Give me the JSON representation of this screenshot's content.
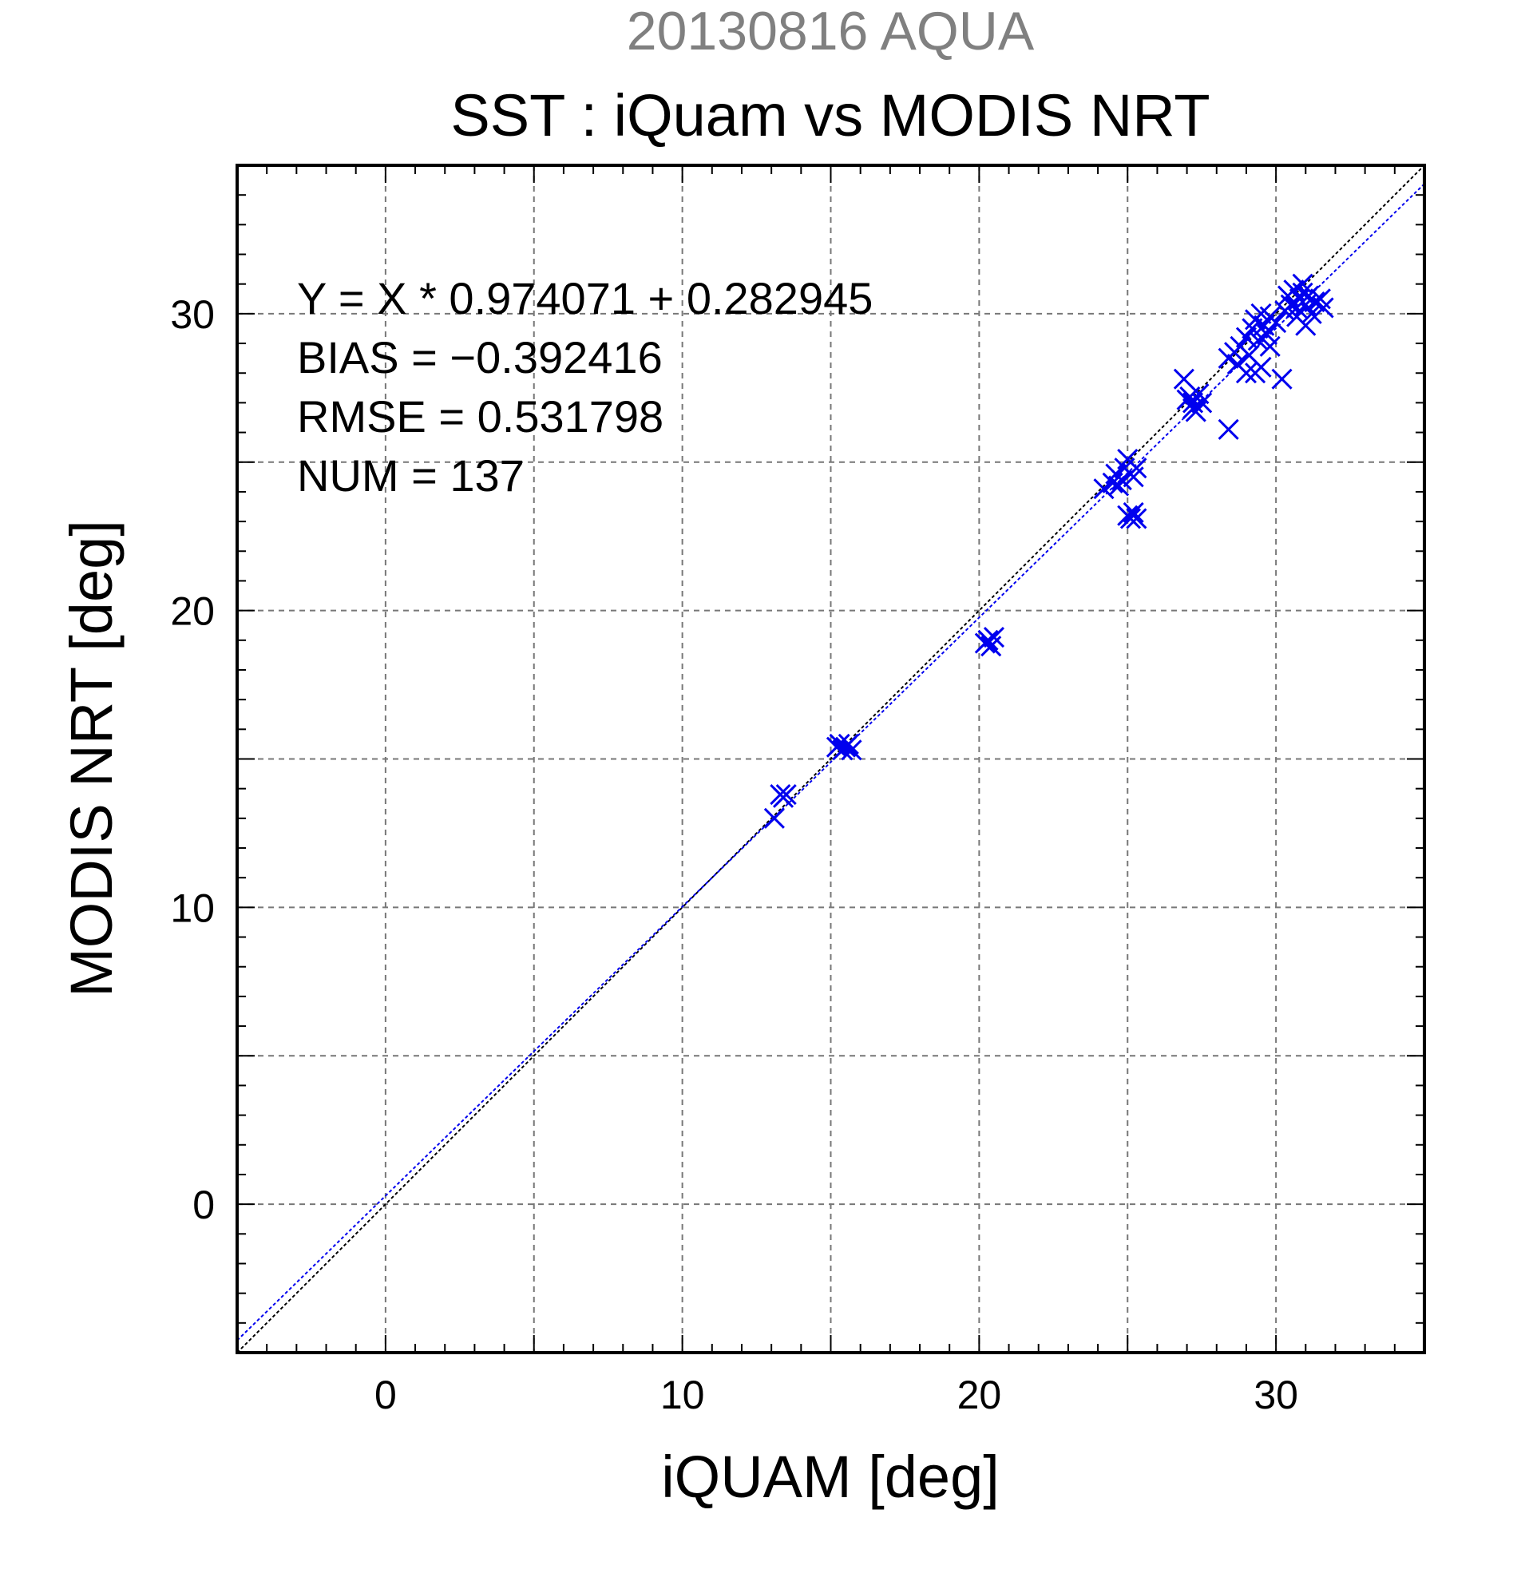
{
  "header": {
    "date_title": "20130816 AQUA",
    "title": "SST : iQuam vs MODIS NRT"
  },
  "stats": {
    "regression": "Y = X * 0.974071 + 0.282945",
    "bias": "BIAS = −0.392416",
    "rmse": "RMSE = 0.531798",
    "num": "NUM = 137"
  },
  "colors": {
    "points": "#0000ee",
    "fit_line": "#0000ee",
    "identity_line": "#000000",
    "grid": "#777777",
    "date_title": "#808080"
  },
  "chart_data": {
    "type": "scatter",
    "xlabel": "iQUAM [deg]",
    "ylabel": "MODIS NRT [deg]",
    "xlim": [
      -5,
      35
    ],
    "ylim": [
      -5,
      35
    ],
    "xticks": [
      0,
      10,
      20,
      30
    ],
    "yticks": [
      0,
      10,
      20,
      30
    ],
    "grid": true,
    "marker": "x",
    "fit": {
      "slope": 0.974071,
      "intercept": 0.282945
    },
    "identity_line": true,
    "points": [
      [
        13.1,
        13.0
      ],
      [
        13.3,
        13.8
      ],
      [
        13.4,
        13.7
      ],
      [
        13.5,
        13.8
      ],
      [
        15.2,
        15.4
      ],
      [
        15.3,
        15.5
      ],
      [
        15.4,
        15.3
      ],
      [
        15.5,
        15.4
      ],
      [
        15.6,
        15.5
      ],
      [
        15.7,
        15.3
      ],
      [
        20.2,
        18.9
      ],
      [
        20.3,
        19.0
      ],
      [
        20.5,
        19.1
      ],
      [
        20.4,
        18.8
      ],
      [
        24.2,
        24.1
      ],
      [
        24.5,
        24.3
      ],
      [
        24.6,
        24.6
      ],
      [
        24.8,
        24.4
      ],
      [
        24.9,
        24.8
      ],
      [
        25.0,
        25.1
      ],
      [
        25.1,
        24.6
      ],
      [
        25.2,
        24.5
      ],
      [
        25.3,
        24.8
      ],
      [
        24.7,
        24.2
      ],
      [
        25.0,
        23.2
      ],
      [
        25.1,
        23.1
      ],
      [
        25.2,
        23.3
      ],
      [
        25.3,
        23.1
      ],
      [
        26.9,
        27.8
      ],
      [
        27.0,
        27.1
      ],
      [
        27.1,
        27.2
      ],
      [
        27.2,
        27.0
      ],
      [
        27.3,
        26.7
      ],
      [
        27.4,
        27.3
      ],
      [
        27.5,
        27.0
      ],
      [
        27.2,
        26.8
      ],
      [
        28.4,
        26.1
      ],
      [
        28.4,
        28.5
      ],
      [
        28.6,
        28.7
      ],
      [
        28.7,
        28.3
      ],
      [
        28.8,
        28.9
      ],
      [
        29.0,
        29.2
      ],
      [
        29.1,
        28.6
      ],
      [
        29.2,
        29.5
      ],
      [
        29.3,
        29.8
      ],
      [
        29.4,
        29.1
      ],
      [
        29.5,
        30.0
      ],
      [
        29.6,
        29.6
      ],
      [
        29.7,
        29.3
      ],
      [
        29.8,
        29.9
      ],
      [
        29.3,
        28.0
      ],
      [
        29.5,
        28.2
      ],
      [
        29.0,
        28.0
      ],
      [
        29.8,
        28.9
      ],
      [
        30.0,
        29.7
      ],
      [
        30.2,
        27.8
      ],
      [
        30.3,
        30.1
      ],
      [
        30.4,
        30.6
      ],
      [
        30.5,
        30.3
      ],
      [
        30.6,
        30.8
      ],
      [
        30.7,
        30.2
      ],
      [
        30.8,
        30.5
      ],
      [
        30.9,
        30.7
      ],
      [
        31.0,
        30.3
      ],
      [
        31.1,
        30.6
      ],
      [
        31.2,
        30.0
      ],
      [
        31.0,
        29.6
      ],
      [
        31.3,
        30.4
      ],
      [
        31.5,
        30.5
      ],
      [
        31.6,
        30.2
      ],
      [
        30.9,
        31.0
      ],
      [
        30.7,
        29.9
      ]
    ]
  }
}
